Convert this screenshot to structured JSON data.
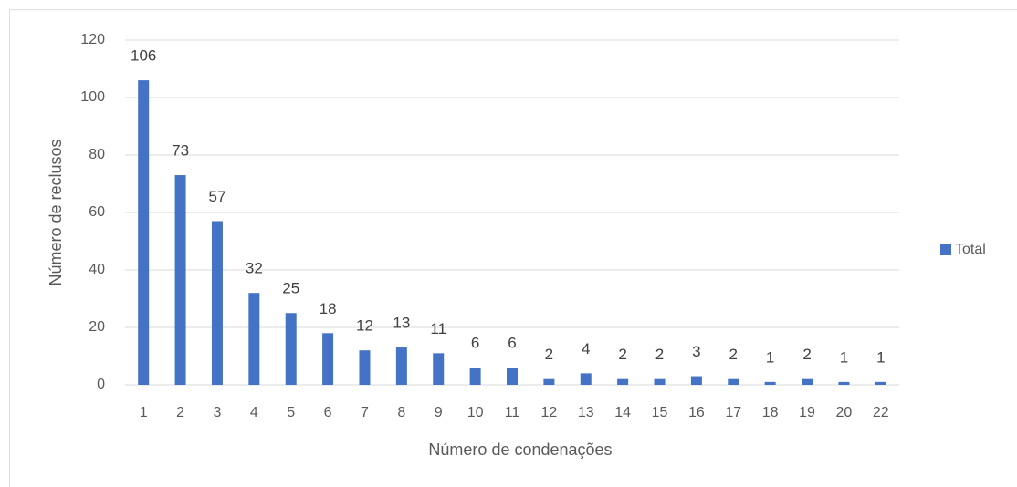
{
  "chart_data": {
    "type": "bar",
    "x_label": "Número de condenações",
    "y_label": "Número de reclusos",
    "categories": [
      "1",
      "2",
      "3",
      "4",
      "5",
      "6",
      "7",
      "8",
      "9",
      "10",
      "11",
      "12",
      "13",
      "14",
      "15",
      "16",
      "17",
      "18",
      "19",
      "20",
      "22"
    ],
    "series": [
      {
        "name": "Total",
        "color": "#4472c4",
        "values": [
          106,
          73,
          57,
          32,
          25,
          18,
          12,
          13,
          11,
          6,
          6,
          2,
          4,
          2,
          2,
          3,
          2,
          1,
          2,
          1,
          1
        ]
      }
    ],
    "ylim": [
      0,
      120
    ],
    "yticks": [
      0,
      20,
      40,
      60,
      80,
      100,
      120
    ],
    "grid": true,
    "legend": "right"
  }
}
